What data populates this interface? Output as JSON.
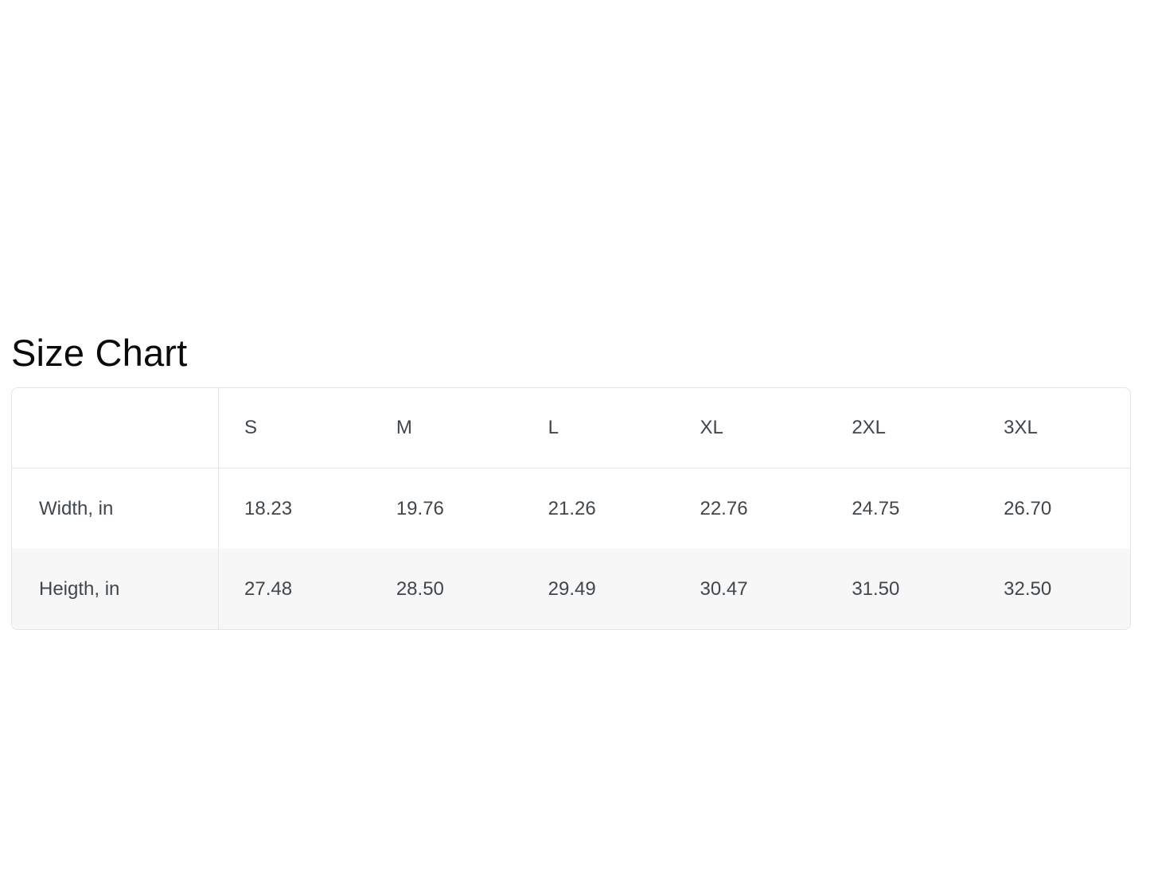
{
  "page": {
    "title": "Size Chart"
  },
  "size_table": {
    "corner_label": "",
    "columns": [
      "S",
      "M",
      "L",
      "XL",
      "2XL",
      "3XL"
    ],
    "rows": [
      {
        "label": "Width, in",
        "values": [
          "18.23",
          "19.76",
          "21.26",
          "22.76",
          "24.75",
          "26.70"
        ]
      },
      {
        "label": "Heigth, in",
        "values": [
          "27.48",
          "28.50",
          "29.49",
          "30.47",
          "31.50",
          "32.50"
        ]
      }
    ],
    "colors": {
      "border": "#e3e3e5",
      "alt_row_bg": "#f7f7f8",
      "cell_text": "#3f474d",
      "title_text": "#0a0a0a"
    }
  },
  "chart_data": {
    "type": "table",
    "title": "Size Chart",
    "columns": [
      "",
      "S",
      "M",
      "L",
      "XL",
      "2XL",
      "3XL"
    ],
    "rows": [
      {
        "label": "Width, in",
        "values": [
          18.23,
          19.76,
          21.26,
          22.76,
          24.75,
          26.7
        ]
      },
      {
        "label": "Heigth, in",
        "values": [
          27.48,
          28.5,
          29.49,
          30.47,
          31.5,
          32.5
        ]
      }
    ],
    "units": "in",
    "layout": {
      "grid": "partial",
      "first_column_divider": true,
      "alternating_row_shading": true
    }
  }
}
